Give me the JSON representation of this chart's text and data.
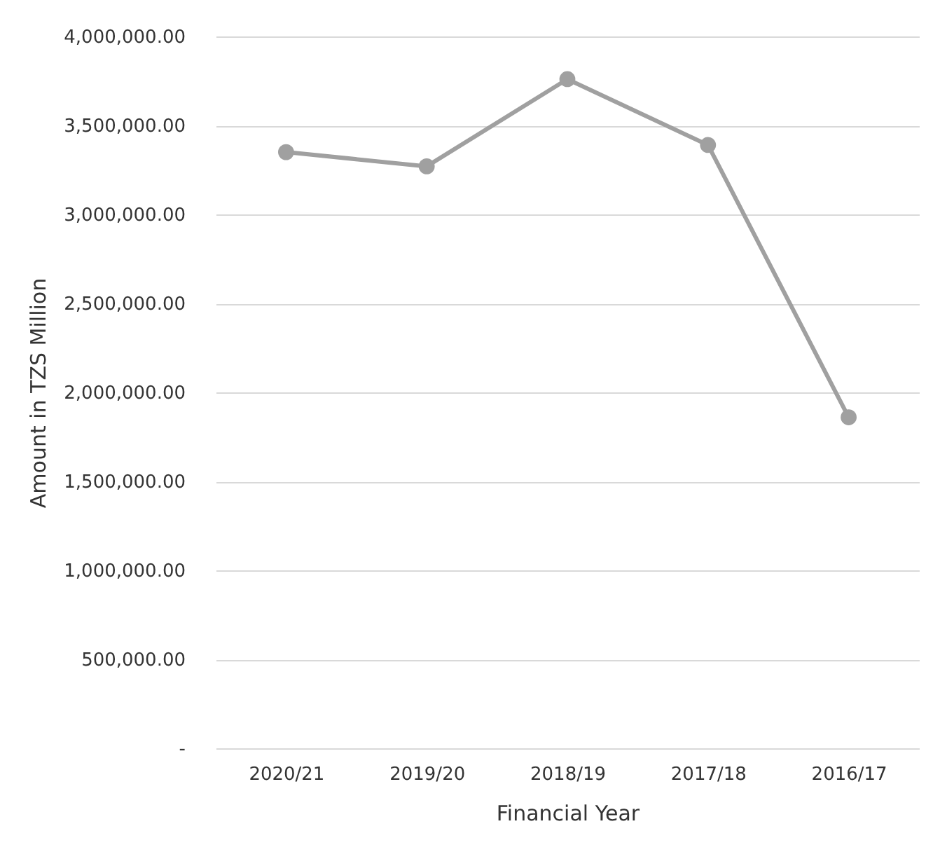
{
  "chart_data": {
    "type": "line",
    "xlabel": "Financial Year",
    "ylabel": "Amount in TZS Million",
    "categories": [
      "2020/21",
      "2019/20",
      "2018/19",
      "2017/18",
      "2016/17"
    ],
    "series": [
      {
        "color": "#a0a0a0",
        "values": [
          3350000,
          3270000,
          3760000,
          3390000,
          1860000
        ]
      }
    ],
    "ylim": [
      0,
      4000000
    ],
    "yticks": [
      {
        "value": 0,
        "label": "-"
      },
      {
        "value": 500000,
        "label": "500,000.00"
      },
      {
        "value": 1000000,
        "label": "1,000,000.00"
      },
      {
        "value": 1500000,
        "label": "1,500,000.00"
      },
      {
        "value": 2000000,
        "label": "2,000,000.00"
      },
      {
        "value": 2500000,
        "label": "2,500,000.00"
      },
      {
        "value": 3000000,
        "label": "3,000,000.00"
      },
      {
        "value": 3500000,
        "label": "3,500,000.00"
      },
      {
        "value": 4000000,
        "label": "4,000,000.00"
      }
    ],
    "grid": "y",
    "marker": "circle",
    "line_style": "solid",
    "legend": false
  }
}
